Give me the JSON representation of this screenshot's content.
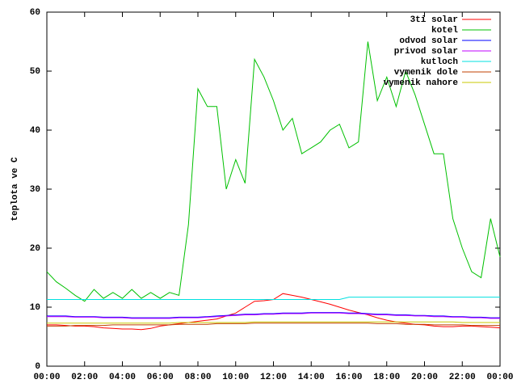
{
  "chart_data": {
    "type": "line",
    "y_label": "teplota ve C",
    "x": [
      0,
      0.5,
      1,
      1.5,
      2,
      2.5,
      3,
      3.5,
      4,
      4.5,
      5,
      5.5,
      6,
      6.5,
      7,
      7.5,
      8,
      8.5,
      9,
      9.5,
      10,
      10.5,
      11,
      11.5,
      12,
      12.5,
      13,
      13.5,
      14,
      14.5,
      15,
      15.5,
      16,
      16.5,
      17,
      17.5,
      18,
      18.5,
      19,
      19.5,
      20,
      20.5,
      21,
      21.5,
      22,
      22.5,
      23,
      23.5,
      24
    ],
    "xlim": [
      0,
      24
    ],
    "xticks": [
      {
        "value": 0,
        "label": "00:00"
      },
      {
        "value": 2,
        "label": "02:00"
      },
      {
        "value": 4,
        "label": "04:00"
      },
      {
        "value": 6,
        "label": "06:00"
      },
      {
        "value": 8,
        "label": "08:00"
      },
      {
        "value": 10,
        "label": "10:00"
      },
      {
        "value": 12,
        "label": "12:00"
      },
      {
        "value": 14,
        "label": "14:00"
      },
      {
        "value": 16,
        "label": "16:00"
      },
      {
        "value": 18,
        "label": "18:00"
      },
      {
        "value": 20,
        "label": "20:00"
      },
      {
        "value": 22,
        "label": "22:00"
      },
      {
        "value": 24,
        "label": "00:00"
      }
    ],
    "ylim": [
      0,
      60
    ],
    "yticks": [
      0,
      10,
      20,
      30,
      40,
      50,
      60
    ],
    "grid": false,
    "legend": "top-right",
    "series": [
      {
        "name": "3ti solar",
        "color": "#ff0000",
        "values": [
          7,
          7,
          6.9,
          6.8,
          6.8,
          6.7,
          6.5,
          6.4,
          6.3,
          6.3,
          6.2,
          6.4,
          6.8,
          7,
          7.2,
          7.4,
          7.6,
          7.8,
          8,
          8.5,
          9,
          10,
          11,
          11.1,
          11.3,
          12.3,
          12,
          11.7,
          11.3,
          10.9,
          10.5,
          10,
          9.5,
          9.1,
          8.7,
          8.2,
          7.8,
          7.5,
          7.3,
          7.1,
          7,
          6.8,
          6.7,
          6.7,
          6.8,
          6.8,
          6.7,
          6.6,
          6.5
        ]
      },
      {
        "name": "kotel",
        "color": "#00c000",
        "values": [
          16,
          14.3,
          13.2,
          12,
          11,
          13,
          11.5,
          12.5,
          11.5,
          13,
          11.5,
          12.5,
          11.5,
          12.5,
          12,
          24,
          47,
          44,
          44,
          30,
          35,
          31,
          52,
          49,
          45,
          40,
          42,
          36,
          37,
          38,
          40,
          41,
          37,
          38,
          55,
          45,
          49,
          44,
          50,
          46,
          41,
          36,
          36,
          25,
          20,
          16,
          15,
          25,
          18.5
        ]
      },
      {
        "name": "odvod solar",
        "color": "#0000ff",
        "values": [
          8.5,
          8.5,
          8.5,
          8.4,
          8.4,
          8.4,
          8.3,
          8.3,
          8.3,
          8.2,
          8.2,
          8.2,
          8.2,
          8.2,
          8.3,
          8.3,
          8.3,
          8.4,
          8.5,
          8.6,
          8.7,
          8.8,
          8.8,
          8.9,
          8.9,
          9,
          9,
          9,
          9.1,
          9.1,
          9.1,
          9.1,
          9,
          9,
          8.9,
          8.8,
          8.8,
          8.7,
          8.7,
          8.6,
          8.6,
          8.5,
          8.5,
          8.4,
          8.4,
          8.3,
          8.3,
          8.2,
          8.2
        ]
      },
      {
        "name": "privod solar",
        "color": "#c000ff",
        "values": [
          8.4,
          8.4,
          8.4,
          8.3,
          8.3,
          8.3,
          8.2,
          8.2,
          8.2,
          8.1,
          8.1,
          8.1,
          8.1,
          8.1,
          8.2,
          8.2,
          8.2,
          8.3,
          8.4,
          8.5,
          8.6,
          8.7,
          8.7,
          8.8,
          8.8,
          8.9,
          8.9,
          8.9,
          9,
          9,
          9,
          9,
          8.9,
          8.9,
          8.8,
          8.7,
          8.7,
          8.6,
          8.6,
          8.5,
          8.5,
          8.4,
          8.4,
          8.3,
          8.3,
          8.2,
          8.2,
          8.1,
          8.1
        ]
      },
      {
        "name": "kutloch",
        "color": "#00e0e0",
        "values": [
          11.3,
          11.3,
          11.3,
          11.3,
          11.3,
          11.3,
          11.3,
          11.3,
          11.3,
          11.3,
          11.3,
          11.3,
          11.3,
          11.3,
          11.3,
          11.3,
          11.3,
          11.3,
          11.3,
          11.3,
          11.3,
          11.3,
          11.3,
          11.3,
          11.3,
          11.3,
          11.3,
          11.3,
          11.3,
          11.3,
          11.3,
          11.3,
          11.7,
          11.7,
          11.7,
          11.7,
          11.7,
          11.7,
          11.7,
          11.7,
          11.7,
          11.7,
          11.7,
          11.7,
          11.7,
          11.7,
          11.7,
          11.7,
          11.7
        ]
      },
      {
        "name": "vymenik dole",
        "color": "#c04000",
        "values": [
          6.8,
          6.8,
          6.8,
          6.9,
          6.9,
          6.9,
          6.9,
          7,
          7,
          7,
          7,
          7,
          7,
          7,
          7.1,
          7.1,
          7.1,
          7.1,
          7.2,
          7.2,
          7.2,
          7.2,
          7.3,
          7.3,
          7.3,
          7.3,
          7.3,
          7.3,
          7.3,
          7.3,
          7.3,
          7.3,
          7.3,
          7.3,
          7.3,
          7.2,
          7.2,
          7.2,
          7.1,
          7.1,
          7.1,
          7,
          7,
          7,
          7,
          6.9,
          6.9,
          6.9,
          6.9
        ]
      },
      {
        "name": "vymenik nahore",
        "color": "#c8c800",
        "values": [
          7.3,
          7.3,
          7.3,
          7.3,
          7.3,
          7.3,
          7.3,
          7.3,
          7.3,
          7.3,
          7.3,
          7.3,
          7.3,
          7.3,
          7.4,
          7.4,
          7.4,
          7.4,
          7.4,
          7.4,
          7.4,
          7.4,
          7.5,
          7.5,
          7.5,
          7.5,
          7.5,
          7.5,
          7.5,
          7.5,
          7.5,
          7.5,
          7.5,
          7.5,
          7.5,
          7.5,
          7.5,
          7.5,
          7.5,
          7.5,
          7.5,
          7.5,
          7.5,
          7.5,
          7.4,
          7.4,
          7.4,
          7.4,
          7.4
        ]
      }
    ]
  }
}
